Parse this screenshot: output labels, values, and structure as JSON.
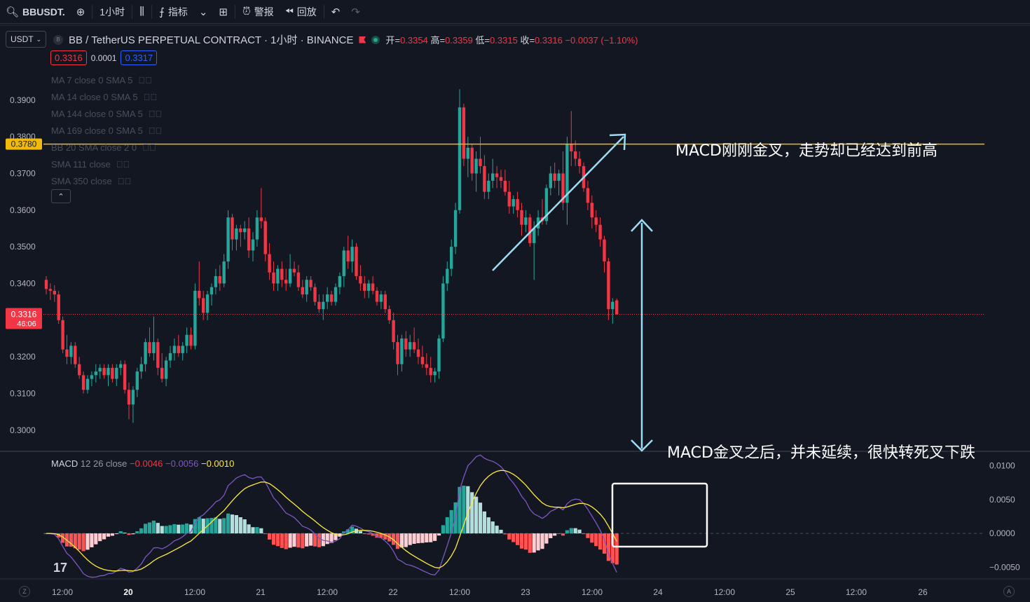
{
  "toolbar": {
    "symbol": "BBUSDT.",
    "interval": "1小时",
    "indicators_label": "指标",
    "alert_label": "警报",
    "replay_label": "回放"
  },
  "quote_currency": "USDT",
  "legend": {
    "title": "BB / TetherUS PERPETUAL CONTRACT · 1小时 · BINANCE",
    "open_label": "开=",
    "open": "0.3354",
    "high_label": "高=",
    "high": "0.3359",
    "low_label": "低=",
    "low": "0.3315",
    "close_label": "收=",
    "close": "0.3316",
    "change": "−0.0037 (−1.10%)"
  },
  "bid_ask": {
    "bid": "0.3316",
    "spread": "0.0001",
    "ask": "0.3317"
  },
  "indicators": [
    "MA 7 close 0 SMA 5",
    "MA 14 close 0 SMA 5",
    "MA 144 close 0 SMA 5",
    "MA 169 close 0 SMA 5",
    "BB 20 SMA close 2 0",
    "SMA 111 close",
    "SMA 350 close"
  ],
  "macd_legend": {
    "name": "MACD",
    "params": "12 26 close",
    "hist": "−0.0046",
    "macd": "−0.0056",
    "signal": "−0.0010"
  },
  "annotations": {
    "top": "MACD刚刚金叉，走势却已经达到前高",
    "bottom": "MACD金叉之后，并未延续，很快转死叉下跌"
  },
  "price_tags": {
    "level_line": "0.3780",
    "current": "0.3316",
    "countdown": "46:06"
  },
  "colors": {
    "up": "#26a69a",
    "down": "#f23645",
    "level_line": "#f0b90b",
    "arrow": "#9edcf5",
    "macd_line": "#7e57c2",
    "signal_line": "#ffeb3b"
  },
  "chart_data": [
    {
      "type": "candlestick",
      "title": "BB / TetherUS PERPETUAL CONTRACT · 1小时 · BINANCE",
      "y_ticks": [
        "0.3900",
        "0.3800",
        "0.3700",
        "0.3600",
        "0.3500",
        "0.3400",
        "0.3300",
        "0.3200",
        "0.3100",
        "0.3000"
      ],
      "ylim": [
        0.295,
        0.402
      ],
      "x_ticks": [
        "12:00",
        "20",
        "12:00",
        "21",
        "12:00",
        "22",
        "12:00",
        "23",
        "12:00",
        "24",
        "12:00",
        "25",
        "12:00",
        "26"
      ],
      "horizontal_line": 0.378,
      "current_price": 0.3316,
      "ohlc": [
        [
          0.341,
          0.342,
          0.337,
          0.3385
        ],
        [
          0.3385,
          0.34,
          0.3355,
          0.338
        ],
        [
          0.338,
          0.3395,
          0.335,
          0.337
        ],
        [
          0.337,
          0.338,
          0.329,
          0.33
        ],
        [
          0.33,
          0.331,
          0.321,
          0.322
        ],
        [
          0.322,
          0.326,
          0.318,
          0.32
        ],
        [
          0.32,
          0.324,
          0.318,
          0.323
        ],
        [
          0.323,
          0.324,
          0.317,
          0.318
        ],
        [
          0.318,
          0.32,
          0.314,
          0.315
        ],
        [
          0.315,
          0.316,
          0.31,
          0.311
        ],
        [
          0.311,
          0.315,
          0.31,
          0.314
        ],
        [
          0.314,
          0.316,
          0.312,
          0.315
        ],
        [
          0.315,
          0.318,
          0.313,
          0.316
        ],
        [
          0.316,
          0.318,
          0.314,
          0.317
        ],
        [
          0.317,
          0.318,
          0.314,
          0.315
        ],
        [
          0.315,
          0.318,
          0.312,
          0.317
        ],
        [
          0.317,
          0.318,
          0.313,
          0.314
        ],
        [
          0.314,
          0.318,
          0.312,
          0.317
        ],
        [
          0.317,
          0.319,
          0.315,
          0.318
        ],
        [
          0.318,
          0.319,
          0.31,
          0.311
        ],
        [
          0.311,
          0.313,
          0.303,
          0.307
        ],
        [
          0.307,
          0.312,
          0.302,
          0.311
        ],
        [
          0.311,
          0.317,
          0.309,
          0.316
        ],
        [
          0.316,
          0.32,
          0.314,
          0.318
        ],
        [
          0.318,
          0.325,
          0.316,
          0.324
        ],
        [
          0.324,
          0.328,
          0.32,
          0.321
        ],
        [
          0.321,
          0.331,
          0.319,
          0.324
        ],
        [
          0.324,
          0.325,
          0.315,
          0.317
        ],
        [
          0.317,
          0.321,
          0.313,
          0.314
        ],
        [
          0.314,
          0.32,
          0.312,
          0.319
        ],
        [
          0.319,
          0.323,
          0.317,
          0.321
        ],
        [
          0.321,
          0.325,
          0.319,
          0.323
        ],
        [
          0.323,
          0.326,
          0.32,
          0.321
        ],
        [
          0.321,
          0.324,
          0.319,
          0.323
        ],
        [
          0.323,
          0.328,
          0.321,
          0.326
        ],
        [
          0.326,
          0.328,
          0.322,
          0.323
        ],
        [
          0.323,
          0.34,
          0.322,
          0.338
        ],
        [
          0.338,
          0.346,
          0.334,
          0.336
        ],
        [
          0.336,
          0.338,
          0.33,
          0.332
        ],
        [
          0.332,
          0.338,
          0.33,
          0.337
        ],
        [
          0.337,
          0.34,
          0.334,
          0.339
        ],
        [
          0.339,
          0.344,
          0.337,
          0.342
        ],
        [
          0.342,
          0.345,
          0.338,
          0.34
        ],
        [
          0.34,
          0.348,
          0.339,
          0.346
        ],
        [
          0.346,
          0.36,
          0.344,
          0.358
        ],
        [
          0.358,
          0.359,
          0.349,
          0.352
        ],
        [
          0.352,
          0.356,
          0.349,
          0.355
        ],
        [
          0.355,
          0.356,
          0.35,
          0.354
        ],
        [
          0.354,
          0.357,
          0.352,
          0.355
        ],
        [
          0.355,
          0.358,
          0.347,
          0.349
        ],
        [
          0.349,
          0.354,
          0.346,
          0.352
        ],
        [
          0.352,
          0.36,
          0.35,
          0.358
        ],
        [
          0.358,
          0.366,
          0.355,
          0.357
        ],
        [
          0.357,
          0.358,
          0.346,
          0.348
        ],
        [
          0.348,
          0.351,
          0.341,
          0.343
        ],
        [
          0.343,
          0.346,
          0.338,
          0.34
        ],
        [
          0.34,
          0.345,
          0.338,
          0.344
        ],
        [
          0.344,
          0.346,
          0.339,
          0.341
        ],
        [
          0.341,
          0.344,
          0.338,
          0.34
        ],
        [
          0.34,
          0.348,
          0.339,
          0.344
        ],
        [
          0.344,
          0.346,
          0.342,
          0.343
        ],
        [
          0.343,
          0.345,
          0.338,
          0.339
        ],
        [
          0.339,
          0.341,
          0.336,
          0.337
        ],
        [
          0.337,
          0.342,
          0.335,
          0.341
        ],
        [
          0.341,
          0.342,
          0.338,
          0.339
        ],
        [
          0.339,
          0.34,
          0.334,
          0.335
        ],
        [
          0.335,
          0.337,
          0.332,
          0.333
        ],
        [
          0.333,
          0.337,
          0.33,
          0.335
        ],
        [
          0.335,
          0.339,
          0.333,
          0.337
        ],
        [
          0.337,
          0.338,
          0.334,
          0.335
        ],
        [
          0.335,
          0.34,
          0.334,
          0.339
        ],
        [
          0.339,
          0.343,
          0.337,
          0.342
        ],
        [
          0.342,
          0.35,
          0.339,
          0.349
        ],
        [
          0.349,
          0.353,
          0.344,
          0.346
        ],
        [
          0.346,
          0.352,
          0.343,
          0.35
        ],
        [
          0.35,
          0.351,
          0.341,
          0.342
        ],
        [
          0.342,
          0.345,
          0.338,
          0.34
        ],
        [
          0.34,
          0.342,
          0.336,
          0.338
        ],
        [
          0.338,
          0.341,
          0.336,
          0.34
        ],
        [
          0.34,
          0.342,
          0.337,
          0.338
        ],
        [
          0.338,
          0.339,
          0.334,
          0.335
        ],
        [
          0.335,
          0.338,
          0.333,
          0.337
        ],
        [
          0.337,
          0.338,
          0.332,
          0.333
        ],
        [
          0.333,
          0.334,
          0.329,
          0.33
        ],
        [
          0.33,
          0.332,
          0.322,
          0.324
        ],
        [
          0.324,
          0.326,
          0.315,
          0.318
        ],
        [
          0.318,
          0.326,
          0.316,
          0.325
        ],
        [
          0.325,
          0.327,
          0.32,
          0.322
        ],
        [
          0.322,
          0.326,
          0.32,
          0.324
        ],
        [
          0.324,
          0.328,
          0.321,
          0.322
        ],
        [
          0.322,
          0.325,
          0.318,
          0.32
        ],
        [
          0.32,
          0.323,
          0.317,
          0.318
        ],
        [
          0.318,
          0.321,
          0.315,
          0.317
        ],
        [
          0.317,
          0.32,
          0.313,
          0.315
        ],
        [
          0.315,
          0.317,
          0.313,
          0.316
        ],
        [
          0.316,
          0.326,
          0.314,
          0.325
        ],
        [
          0.325,
          0.342,
          0.324,
          0.34
        ],
        [
          0.34,
          0.346,
          0.338,
          0.344
        ],
        [
          0.344,
          0.352,
          0.342,
          0.35
        ],
        [
          0.35,
          0.362,
          0.348,
          0.36
        ],
        [
          0.36,
          0.393,
          0.359,
          0.388
        ],
        [
          0.388,
          0.389,
          0.372,
          0.374
        ],
        [
          0.374,
          0.38,
          0.369,
          0.377
        ],
        [
          0.377,
          0.378,
          0.368,
          0.37
        ],
        [
          0.37,
          0.376,
          0.365,
          0.374
        ],
        [
          0.374,
          0.38,
          0.37,
          0.372
        ],
        [
          0.372,
          0.375,
          0.363,
          0.365
        ],
        [
          0.365,
          0.37,
          0.363,
          0.368
        ],
        [
          0.368,
          0.374,
          0.366,
          0.37
        ],
        [
          0.37,
          0.372,
          0.366,
          0.369
        ],
        [
          0.369,
          0.371,
          0.366,
          0.368
        ],
        [
          0.368,
          0.371,
          0.364,
          0.365
        ],
        [
          0.365,
          0.368,
          0.359,
          0.361
        ],
        [
          0.361,
          0.364,
          0.359,
          0.363
        ],
        [
          0.363,
          0.365,
          0.358,
          0.36
        ],
        [
          0.36,
          0.362,
          0.353,
          0.356
        ],
        [
          0.356,
          0.36,
          0.354,
          0.358
        ],
        [
          0.358,
          0.359,
          0.35,
          0.351
        ],
        [
          0.351,
          0.357,
          0.341,
          0.355
        ],
        [
          0.355,
          0.36,
          0.353,
          0.358
        ],
        [
          0.358,
          0.363,
          0.356,
          0.357
        ],
        [
          0.357,
          0.367,
          0.356,
          0.366
        ],
        [
          0.366,
          0.372,
          0.364,
          0.37
        ],
        [
          0.37,
          0.373,
          0.366,
          0.368
        ],
        [
          0.368,
          0.371,
          0.364,
          0.37
        ],
        [
          0.37,
          0.376,
          0.36,
          0.362
        ],
        [
          0.362,
          0.38,
          0.356,
          0.378
        ],
        [
          0.378,
          0.387,
          0.372,
          0.376
        ],
        [
          0.376,
          0.379,
          0.372,
          0.374
        ],
        [
          0.374,
          0.376,
          0.37,
          0.372
        ],
        [
          0.372,
          0.373,
          0.365,
          0.366
        ],
        [
          0.366,
          0.368,
          0.36,
          0.362
        ],
        [
          0.362,
          0.364,
          0.355,
          0.358
        ],
        [
          0.358,
          0.36,
          0.354,
          0.356
        ],
        [
          0.356,
          0.358,
          0.35,
          0.352
        ],
        [
          0.352,
          0.353,
          0.343,
          0.346
        ],
        [
          0.346,
          0.347,
          0.33,
          0.333
        ],
        [
          0.333,
          0.336,
          0.329,
          0.335
        ],
        [
          0.3354,
          0.3359,
          0.3315,
          0.3316
        ]
      ]
    },
    {
      "type": "macd",
      "title": "MACD 12 26 close",
      "y_ticks": [
        "0.0100",
        "0.0050",
        "0.0000",
        "−0.0050"
      ],
      "ylim": [
        -0.0063,
        0.0117
      ],
      "last": {
        "histogram": -0.0046,
        "macd": -0.0056,
        "signal": -0.001
      }
    }
  ]
}
